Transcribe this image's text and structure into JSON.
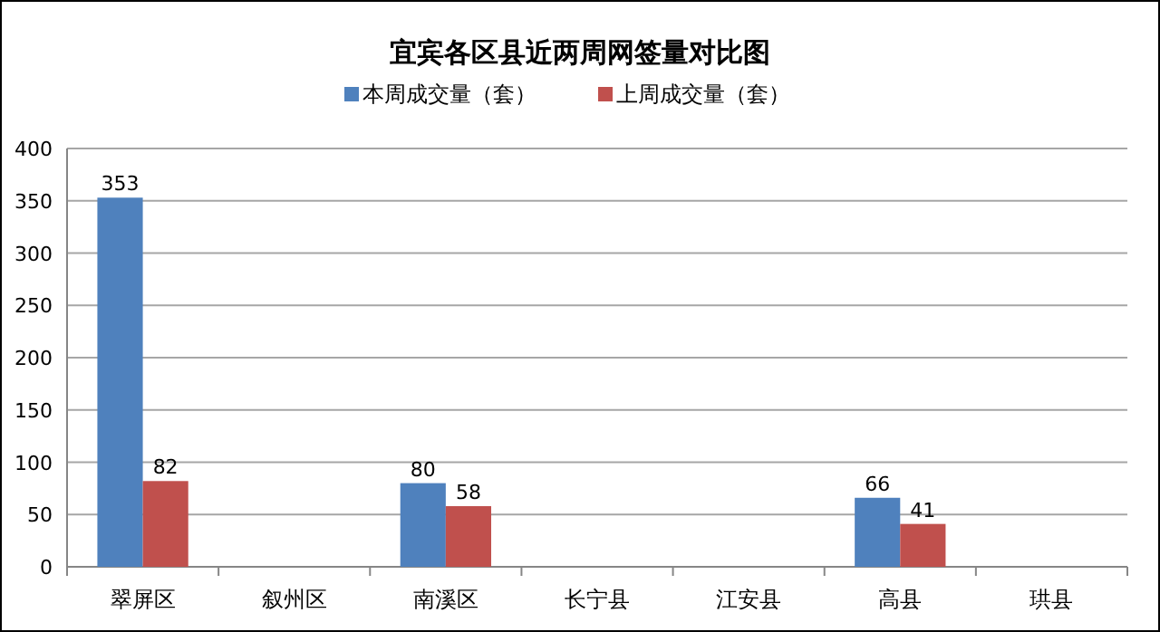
{
  "chart_data": {
    "type": "bar",
    "title": "宜宾各区县近两周网签量对比图",
    "categories": [
      "翠屏区",
      "叙州区",
      "南溪区",
      "长宁县",
      "江安县",
      "高县",
      "珙县"
    ],
    "series": [
      {
        "name": "本周成交量（套）",
        "color": "#4f81bd",
        "values": [
          353,
          null,
          80,
          null,
          null,
          66,
          null
        ]
      },
      {
        "name": "上周成交量（套）",
        "color": "#c0504d",
        "values": [
          82,
          null,
          58,
          null,
          null,
          41,
          null
        ]
      }
    ],
    "ylim": [
      0,
      400
    ],
    "yticks": [
      0,
      50,
      100,
      150,
      200,
      250,
      300,
      350,
      400
    ],
    "grid": "y",
    "legend": "top",
    "data_labels": true
  }
}
